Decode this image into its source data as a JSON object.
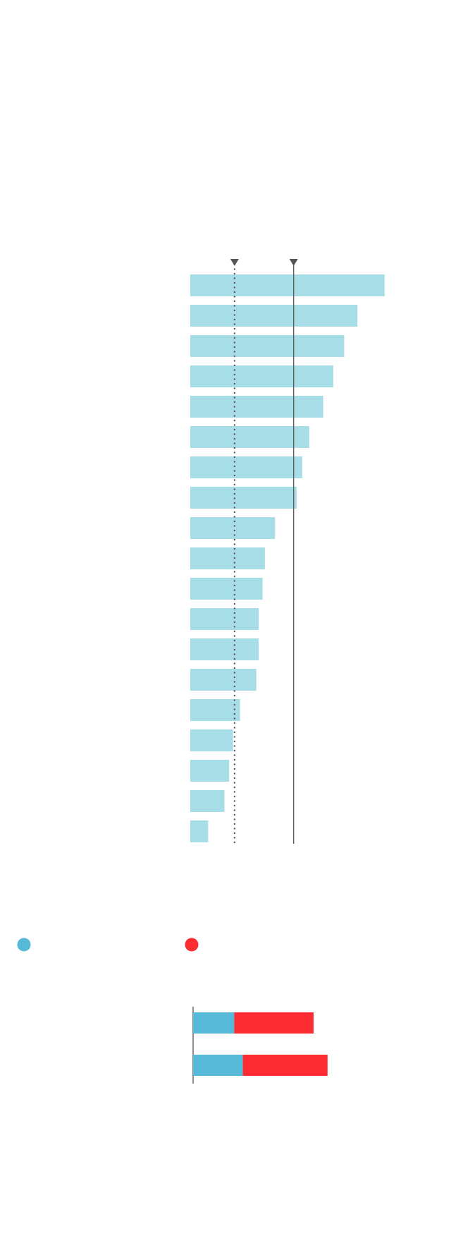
{
  "chart_data": [
    {
      "type": "bar",
      "orientation": "horizontal",
      "categories": [
        null,
        null,
        null,
        null,
        null,
        null,
        null,
        null,
        null,
        null,
        null,
        null,
        null,
        null,
        null,
        null,
        null,
        null,
        null
      ],
      "values": [
        250,
        215,
        198,
        184,
        171,
        153,
        144,
        137,
        109,
        96,
        93,
        88,
        88,
        85,
        64,
        55,
        50,
        44,
        23
      ],
      "color": "#a6dde6",
      "reference_lines": [
        {
          "value": 57,
          "style": "dotted",
          "color": "#555555"
        },
        {
          "value": 133,
          "style": "solid",
          "color": "#555555"
        }
      ]
    },
    {
      "type": "bar",
      "orientation": "horizontal",
      "stacked": true,
      "categories": [
        null,
        null
      ],
      "series": [
        {
          "color": "#55b9d7",
          "values": [
            53,
            64
          ]
        },
        {
          "color": "#fd2c33",
          "values": [
            102,
            109
          ]
        }
      ]
    }
  ]
}
